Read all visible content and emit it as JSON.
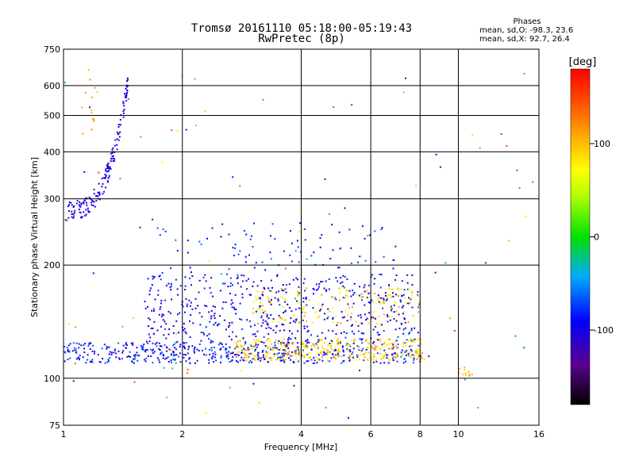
{
  "header": {
    "title_line1": "Tromsø 20161110 05:18:00-05:19:43",
    "title_line2": "RwPretec (8p)"
  },
  "phases_box": {
    "title": "Phases",
    "line1": "mean, sd,O: -98.3, 23.6",
    "line2": "mean, sd,X:  92.7, 26.4"
  },
  "colorbar": {
    "label": "[deg]",
    "ticks": [
      "100",
      "0",
      "-100"
    ],
    "tick_values": [
      100,
      0,
      -100
    ],
    "range": [
      -180,
      180
    ]
  },
  "chart_data": {
    "type": "scatter",
    "title": "Tromsø 20161110 05:18:00-05:19:43",
    "subtitle": "RwPretec (8p)",
    "xlabel": "Frequency [MHz]",
    "ylabel": "Stationary phase Virtual Height [km]",
    "x_scale": "log",
    "y_scale": "log",
    "xlim": [
      1,
      16
    ],
    "ylim": [
      75,
      750
    ],
    "x_ticks": [
      1,
      2,
      4,
      6,
      8,
      10,
      16
    ],
    "x_tick_labels": [
      "1",
      "2",
      "4",
      "6",
      "8",
      "10",
      "16"
    ],
    "y_ticks": [
      75,
      100,
      200,
      300,
      400,
      500,
      600,
      750
    ],
    "y_tick_labels": [
      "75",
      "100",
      "200",
      "300",
      "400",
      "500",
      "600",
      "750"
    ],
    "grid": true,
    "clusters": [
      {
        "name": "F-trace O",
        "freq": [
          1.0,
          1.45
        ],
        "height": [
          280,
          620
        ],
        "phase": [
          -120,
          -90
        ],
        "n": 160,
        "curve": true
      },
      {
        "name": "F-trace X",
        "freq": [
          1.08,
          1.25
        ],
        "height": [
          440,
          680
        ],
        "phase": [
          90,
          130
        ],
        "n": 14
      },
      {
        "name": "E-layer O",
        "freq": [
          1.0,
          8.1
        ],
        "height": [
          110,
          125
        ],
        "phase": [
          -120,
          -60
        ],
        "n": 520
      },
      {
        "name": "E-layer X",
        "freq": [
          2.7,
          8.2
        ],
        "height": [
          112,
          128
        ],
        "phase": [
          70,
          120
        ],
        "n": 320
      },
      {
        "name": "spread O",
        "freq": [
          1.6,
          8.0
        ],
        "height": [
          125,
          190
        ],
        "phase": [
          -120,
          -70
        ],
        "n": 520
      },
      {
        "name": "spread X",
        "freq": [
          3.0,
          8.0
        ],
        "height": [
          140,
          175
        ],
        "phase": [
          60,
          120
        ],
        "n": 160
      },
      {
        "name": "spread upper",
        "freq": [
          1.7,
          7.0
        ],
        "height": [
          190,
          260
        ],
        "phase": [
          -110,
          -60
        ],
        "n": 90
      },
      {
        "name": "sporadic",
        "freq": [
          1.0,
          15.5
        ],
        "height": [
          76,
          650
        ],
        "phase": [
          -150,
          170
        ],
        "n": 90
      },
      {
        "name": "10 MHz echo",
        "freq": [
          10.0,
          10.8
        ],
        "height": [
          102,
          108
        ],
        "phase": [
          90,
          110
        ],
        "n": 14
      }
    ]
  }
}
